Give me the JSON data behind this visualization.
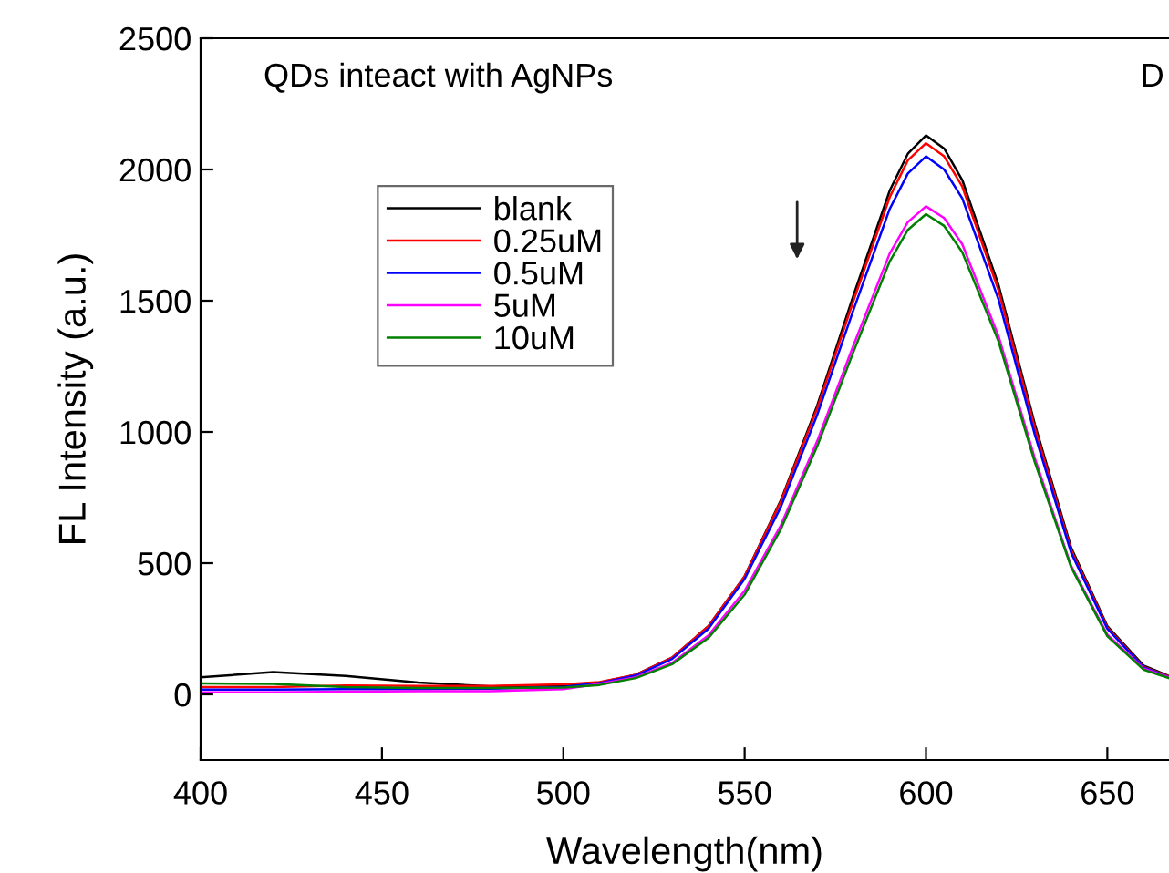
{
  "chart_data": {
    "type": "line",
    "xlabel": "Wavelength(nm)",
    "ylabel": "FL Intensity (a.u.)",
    "annotations": [
      "QDs inteact with AgNPs",
      "D"
    ],
    "x": [
      400,
      420,
      440,
      460,
      480,
      500,
      510,
      520,
      530,
      540,
      550,
      560,
      570,
      580,
      590,
      595,
      600,
      605,
      610,
      620,
      630,
      640,
      650,
      660,
      667
    ],
    "series": [
      {
        "name": "blank",
        "color": "#000000",
        "values": [
          65,
          85,
          70,
          45,
          30,
          35,
          45,
          75,
          140,
          260,
          450,
          740,
          1100,
          1520,
          1920,
          2060,
          2130,
          2080,
          1960,
          1560,
          1030,
          560,
          260,
          110,
          70
        ]
      },
      {
        "name": "0.25uM",
        "color": "#ff0000",
        "values": [
          28,
          28,
          34,
          32,
          32,
          38,
          47,
          75,
          140,
          260,
          450,
          735,
          1090,
          1500,
          1895,
          2035,
          2100,
          2050,
          1935,
          1540,
          1015,
          550,
          255,
          105,
          68
        ]
      },
      {
        "name": "0.5uM",
        "color": "#0000ff",
        "values": [
          18,
          18,
          20,
          20,
          22,
          28,
          43,
          72,
          135,
          250,
          440,
          715,
          1065,
          1465,
          1850,
          1985,
          2050,
          2000,
          1890,
          1505,
          990,
          540,
          250,
          103,
          66
        ]
      },
      {
        "name": "5uM",
        "color": "#ff00ff",
        "values": [
          8,
          8,
          10,
          12,
          12,
          20,
          40,
          65,
          120,
          225,
          395,
          645,
          965,
          1330,
          1680,
          1800,
          1860,
          1815,
          1715,
          1365,
          900,
          490,
          228,
          98,
          65
        ]
      },
      {
        "name": "10uM",
        "color": "#008000",
        "values": [
          42,
          40,
          28,
          24,
          24,
          26,
          36,
          62,
          115,
          215,
          380,
          630,
          945,
          1305,
          1650,
          1770,
          1830,
          1785,
          1685,
          1345,
          885,
          485,
          222,
          94,
          62
        ]
      }
    ],
    "xlim": [
      400,
      667
    ],
    "xticks": [
      400,
      450,
      500,
      550,
      600,
      650
    ],
    "ylim": [
      -250,
      2500
    ],
    "yticks": [
      0,
      500,
      1000,
      1500,
      2000,
      2500
    ],
    "grid": false,
    "legend": "top left",
    "marker": "none",
    "line_style": "solid"
  }
}
